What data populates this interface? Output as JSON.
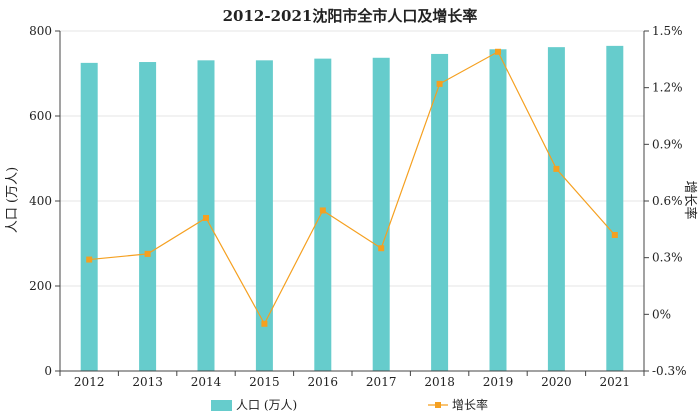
{
  "chart_data": {
    "type": "bar+line",
    "title": "2012-2021沈阳市全市人口及增长率",
    "categories": [
      "2012",
      "2013",
      "2014",
      "2015",
      "2016",
      "2017",
      "2018",
      "2019",
      "2020",
      "2021"
    ],
    "ylabel_left": "人口 (万人)",
    "ylabel_right": "增长率",
    "ylim_left": [
      0,
      800
    ],
    "yticks_left": [
      "0",
      "200",
      "400",
      "600",
      "800"
    ],
    "ylim_right": [
      -0.3,
      1.5
    ],
    "yticks_right": [
      "-0.3%",
      "0%",
      "0.3%",
      "0.6%",
      "0.9%",
      "1.2%",
      "1.5%"
    ],
    "grid": "horizontal",
    "legend_position": "bottom",
    "series": [
      {
        "name": "人口 (万人)",
        "type": "bar",
        "axis": "left",
        "color": "#66cccc",
        "values": [
          725,
          727,
          731,
          731,
          735,
          737,
          746,
          757,
          762,
          765
        ]
      },
      {
        "name": "增长率",
        "type": "line",
        "axis": "right",
        "color": "#f5a020",
        "values": [
          0.29,
          0.32,
          0.51,
          -0.05,
          0.55,
          0.35,
          1.22,
          1.39,
          0.77,
          0.42
        ]
      }
    ]
  }
}
